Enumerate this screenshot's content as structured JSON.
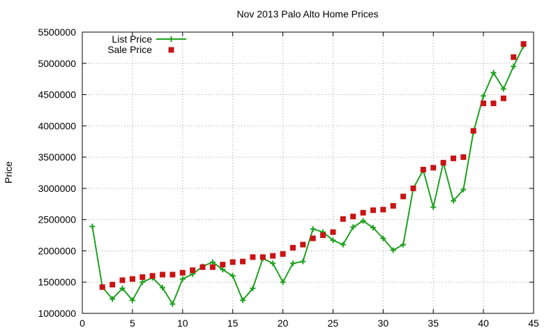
{
  "chart_data": {
    "type": "line",
    "title": "Nov 2013 Palo Alto Home Prices",
    "xlabel": "",
    "ylabel": "Price",
    "xlim": [
      0,
      45
    ],
    "ylim": [
      1000000,
      5500000
    ],
    "x_ticks": [
      0,
      5,
      10,
      15,
      20,
      25,
      30,
      35,
      40,
      45
    ],
    "y_ticks": [
      1000000,
      1500000,
      2000000,
      2500000,
      3000000,
      3500000,
      4000000,
      4500000,
      5000000,
      5500000
    ],
    "grid": true,
    "legend_position": "top-left",
    "series": [
      {
        "name": "List Price",
        "style": "lines+crosses",
        "color": "#1ea01e",
        "x": [
          1,
          2,
          3,
          4,
          5,
          6,
          7,
          8,
          9,
          10,
          11,
          12,
          13,
          14,
          15,
          16,
          17,
          18,
          19,
          20,
          21,
          22,
          23,
          24,
          25,
          26,
          27,
          28,
          29,
          30,
          31,
          32,
          33,
          34,
          35,
          36,
          37,
          38,
          39,
          40,
          41,
          42,
          43,
          44
        ],
        "values": [
          2390000,
          1420000,
          1230000,
          1400000,
          1210000,
          1500000,
          1570000,
          1410000,
          1150000,
          1550000,
          1630000,
          1750000,
          1820000,
          1700000,
          1600000,
          1210000,
          1400000,
          1880000,
          1800000,
          1500000,
          1800000,
          1830000,
          2350000,
          2300000,
          2170000,
          2100000,
          2380000,
          2480000,
          2370000,
          2200000,
          2010000,
          2100000,
          3000000,
          3290000,
          2700000,
          3410000,
          2800000,
          2980000,
          3900000,
          4480000,
          4850000,
          4590000,
          4950000,
          5280000
        ]
      },
      {
        "name": "Sale Price",
        "style": "squares",
        "color": "#c81414",
        "x": [
          2,
          3,
          4,
          5,
          6,
          7,
          8,
          9,
          10,
          11,
          12,
          13,
          14,
          15,
          16,
          17,
          18,
          19,
          20,
          21,
          22,
          23,
          24,
          25,
          26,
          27,
          28,
          29,
          30,
          31,
          32,
          33,
          34,
          35,
          36,
          37,
          38,
          39,
          40,
          41,
          42,
          43,
          44
        ],
        "values": [
          1420000,
          1460000,
          1530000,
          1550000,
          1580000,
          1600000,
          1620000,
          1620000,
          1650000,
          1690000,
          1740000,
          1740000,
          1780000,
          1820000,
          1830000,
          1900000,
          1900000,
          1920000,
          1950000,
          2050000,
          2100000,
          2200000,
          2250000,
          2300000,
          2510000,
          2550000,
          2610000,
          2650000,
          2660000,
          2720000,
          2870000,
          3000000,
          3300000,
          3330000,
          3410000,
          3480000,
          3500000,
          3920000,
          4360000,
          4360000,
          4440000,
          5100000,
          5310000
        ]
      }
    ]
  }
}
